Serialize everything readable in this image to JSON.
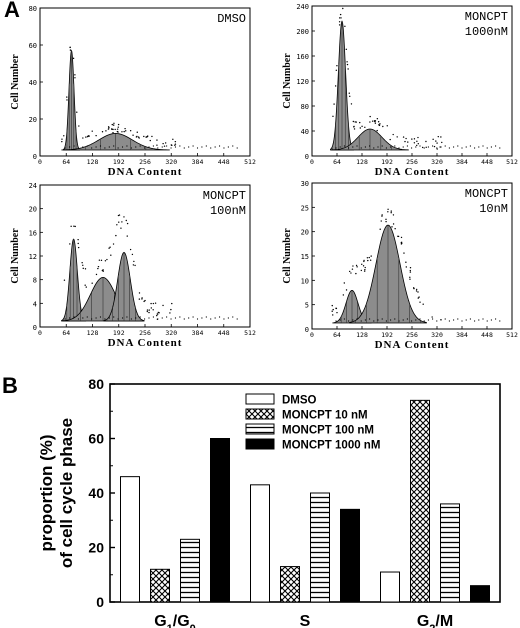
{
  "panel_a": {
    "label": "A",
    "histograms": [
      {
        "name": "DMSO",
        "legend_lines": [
          "DMSO"
        ],
        "ylabel": "Cell Number",
        "xlabel": "DNA Content",
        "yticks": [
          "0",
          "20",
          "40",
          "60",
          "80"
        ],
        "xticks": [
          "0",
          "64",
          "128",
          "192",
          "256",
          "320",
          "384",
          "448",
          "512"
        ]
      },
      {
        "name": "MONCPT 1000nM",
        "legend_lines": [
          "MONCPT",
          "1000nM"
        ],
        "ylabel": "Cell Number",
        "xlabel": "DNA Content",
        "yticks": [
          "0",
          "40",
          "80",
          "120",
          "160",
          "200",
          "240"
        ],
        "xticks": [
          "0",
          "64",
          "128",
          "192",
          "256",
          "320",
          "384",
          "448",
          "512"
        ]
      },
      {
        "name": "MONCPT 100nM",
        "legend_lines": [
          "MONCPT",
          "100nM"
        ],
        "ylabel": "Cell Number",
        "xlabel": "DNA Content",
        "yticks": [
          "0",
          "4",
          "8",
          "12",
          "16",
          "20",
          "24"
        ],
        "xticks": [
          "0",
          "64",
          "128",
          "192",
          "256",
          "320",
          "384",
          "448",
          "512"
        ]
      },
      {
        "name": "MONCPT 10nM",
        "legend_lines": [
          "MONCPT",
          "10nM"
        ],
        "ylabel": "Cell Number",
        "xlabel": "DNA Content",
        "yticks": [
          "0",
          "5",
          "10",
          "15",
          "20",
          "25",
          "30"
        ],
        "xticks": [
          "0",
          "64",
          "128",
          "192",
          "256",
          "320",
          "384",
          "448",
          "512"
        ]
      }
    ]
  },
  "panel_b": {
    "label": "B"
  },
  "chart_data": {
    "type": "bar",
    "ylabel_lines": [
      "proportion (%)",
      "of cell cycle phase"
    ],
    "ylim": [
      0,
      80
    ],
    "yticks": [
      0,
      20,
      40,
      60,
      80
    ],
    "categories": [
      {
        "base": "G",
        "sub": "1",
        "slash": "/G",
        "sub2": "0"
      },
      {
        "base": "S",
        "sub": "",
        "slash": "",
        "sub2": ""
      },
      {
        "base": "G",
        "sub": "2",
        "slash": "/M",
        "sub2": ""
      }
    ],
    "category_labels": [
      "G1/G0",
      "S",
      "G2/M"
    ],
    "legend_position": "top-center",
    "series": [
      {
        "name": "DMSO",
        "pattern": "open",
        "values": [
          46,
          43,
          11
        ]
      },
      {
        "name": "MONCPT 10 nM",
        "pattern": "crosshatch",
        "values": [
          12,
          13,
          74
        ]
      },
      {
        "name": "MONCPT 100 nM",
        "pattern": "horizontal",
        "values": [
          23,
          40,
          36
        ]
      },
      {
        "name": "MONCPT 1000 nM",
        "pattern": "solid",
        "values": [
          60,
          34,
          6
        ]
      }
    ]
  }
}
